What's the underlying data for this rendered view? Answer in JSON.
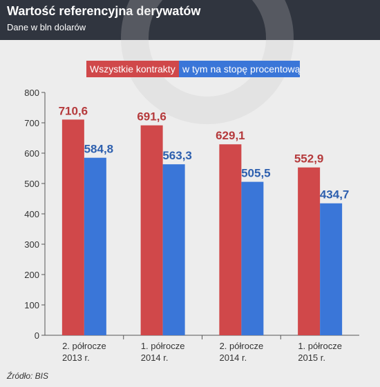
{
  "header": {
    "title": "Wartość referencyjna derywatów",
    "subtitle": "Dane w bln dolarów"
  },
  "footer": {
    "source": "Źródło: BIS"
  },
  "colors": {
    "header_bg": "#30353f",
    "red": "#d0484a",
    "blue": "#3a76d8",
    "red_label": "#b53a3c",
    "blue_label": "#2d5fae"
  },
  "chart_data": {
    "type": "bar",
    "categories": [
      [
        "2. półrocze",
        "2013 r."
      ],
      [
        "1. półrocze",
        "2014 r."
      ],
      [
        "2. półrocze",
        "2014 r."
      ],
      [
        "1. półrocze",
        "2015 r."
      ]
    ],
    "series": [
      {
        "name": "Wszystkie kontrakty",
        "values": [
          710.6,
          691.6,
          629.1,
          552.9
        ],
        "labels": [
          "710,6",
          "691,6",
          "629,1",
          "552,9"
        ]
      },
      {
        "name": "w tym na stopę procentową",
        "values": [
          584.8,
          563.3,
          505.5,
          434.7
        ],
        "labels": [
          "584,8",
          "563,3",
          "505,5",
          "434,7"
        ]
      }
    ],
    "ylim": [
      0,
      800
    ],
    "yticks": [
      0,
      100,
      200,
      300,
      400,
      500,
      600,
      700,
      800
    ],
    "grid": false,
    "legend": "top-center"
  }
}
